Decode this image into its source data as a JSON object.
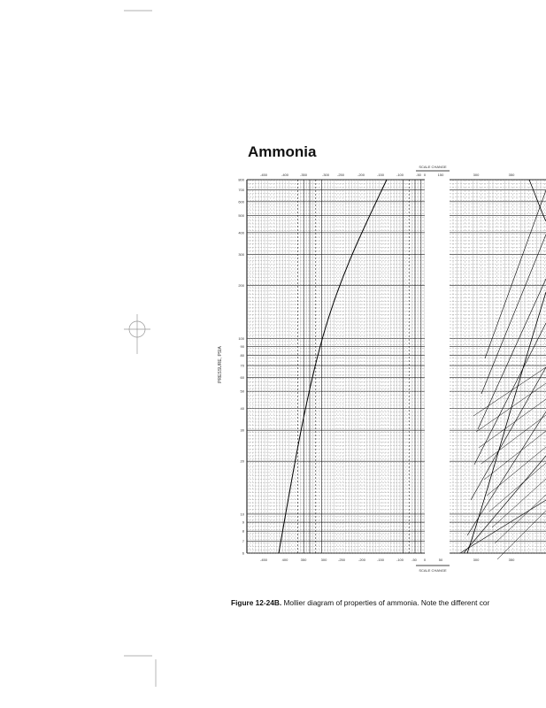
{
  "title": "Ammonia",
  "caption": {
    "label": "Figure 12-24B.",
    "text": " Mollier diagram of properties of ammonia. Note the different cor"
  },
  "chart": {
    "ylabel": "PRESSURE, PSIA",
    "y_scale": "log",
    "y_ticks": [
      "800",
      "700",
      "600",
      "500",
      "400",
      "300",
      "200",
      "100",
      "90",
      "80",
      "70",
      "60",
      "50",
      "40",
      "30",
      "20",
      "10",
      "9",
      "8",
      "7",
      "6"
    ],
    "x_top_ticks": [
      "-450",
      "-400",
      "-350",
      "-300",
      "-250",
      "-200",
      "-150",
      "-100",
      "-50",
      "0",
      "150",
      "300",
      "350"
    ],
    "x_bottom_ticks": [
      "-450",
      "400",
      "350",
      "300",
      "-250",
      "-200",
      "-150",
      "-100",
      "-50",
      "0",
      "50",
      "300",
      "350"
    ],
    "scale_change_top": "SCALE CHANGE",
    "scale_change_bottom": "SCALE CHANGE"
  }
}
